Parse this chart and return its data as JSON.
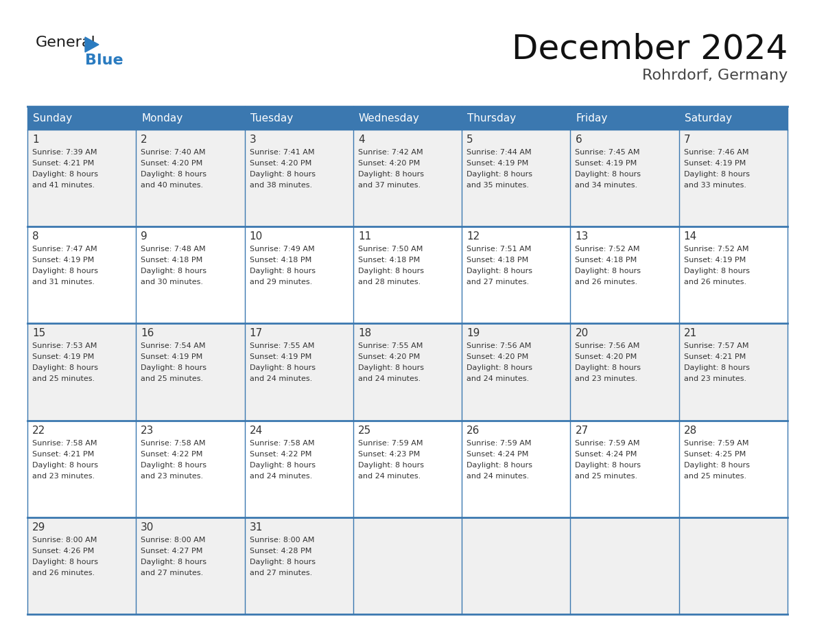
{
  "title": "December 2024",
  "subtitle": "Rohrdorf, Germany",
  "days_of_week": [
    "Sunday",
    "Monday",
    "Tuesday",
    "Wednesday",
    "Thursday",
    "Friday",
    "Saturday"
  ],
  "header_bg": "#3b78b0",
  "header_text": "#ffffff",
  "cell_bg_odd": "#f0f0f0",
  "cell_bg_even": "#ffffff",
  "grid_line_color": "#3b78b0",
  "text_color": "#333333",
  "num_rows": 5,
  "num_cols": 7,
  "calendar_data": [
    [
      {
        "day": 1,
        "sunrise": "7:39 AM",
        "sunset": "4:21 PM",
        "daylight": "8 hours and 41 minutes."
      },
      {
        "day": 2,
        "sunrise": "7:40 AM",
        "sunset": "4:20 PM",
        "daylight": "8 hours and 40 minutes."
      },
      {
        "day": 3,
        "sunrise": "7:41 AM",
        "sunset": "4:20 PM",
        "daylight": "8 hours and 38 minutes."
      },
      {
        "day": 4,
        "sunrise": "7:42 AM",
        "sunset": "4:20 PM",
        "daylight": "8 hours and 37 minutes."
      },
      {
        "day": 5,
        "sunrise": "7:44 AM",
        "sunset": "4:19 PM",
        "daylight": "8 hours and 35 minutes."
      },
      {
        "day": 6,
        "sunrise": "7:45 AM",
        "sunset": "4:19 PM",
        "daylight": "8 hours and 34 minutes."
      },
      {
        "day": 7,
        "sunrise": "7:46 AM",
        "sunset": "4:19 PM",
        "daylight": "8 hours and 33 minutes."
      }
    ],
    [
      {
        "day": 8,
        "sunrise": "7:47 AM",
        "sunset": "4:19 PM",
        "daylight": "8 hours and 31 minutes."
      },
      {
        "day": 9,
        "sunrise": "7:48 AM",
        "sunset": "4:18 PM",
        "daylight": "8 hours and 30 minutes."
      },
      {
        "day": 10,
        "sunrise": "7:49 AM",
        "sunset": "4:18 PM",
        "daylight": "8 hours and 29 minutes."
      },
      {
        "day": 11,
        "sunrise": "7:50 AM",
        "sunset": "4:18 PM",
        "daylight": "8 hours and 28 minutes."
      },
      {
        "day": 12,
        "sunrise": "7:51 AM",
        "sunset": "4:18 PM",
        "daylight": "8 hours and 27 minutes."
      },
      {
        "day": 13,
        "sunrise": "7:52 AM",
        "sunset": "4:18 PM",
        "daylight": "8 hours and 26 minutes."
      },
      {
        "day": 14,
        "sunrise": "7:52 AM",
        "sunset": "4:19 PM",
        "daylight": "8 hours and 26 minutes."
      }
    ],
    [
      {
        "day": 15,
        "sunrise": "7:53 AM",
        "sunset": "4:19 PM",
        "daylight": "8 hours and 25 minutes."
      },
      {
        "day": 16,
        "sunrise": "7:54 AM",
        "sunset": "4:19 PM",
        "daylight": "8 hours and 25 minutes."
      },
      {
        "day": 17,
        "sunrise": "7:55 AM",
        "sunset": "4:19 PM",
        "daylight": "8 hours and 24 minutes."
      },
      {
        "day": 18,
        "sunrise": "7:55 AM",
        "sunset": "4:20 PM",
        "daylight": "8 hours and 24 minutes."
      },
      {
        "day": 19,
        "sunrise": "7:56 AM",
        "sunset": "4:20 PM",
        "daylight": "8 hours and 24 minutes."
      },
      {
        "day": 20,
        "sunrise": "7:56 AM",
        "sunset": "4:20 PM",
        "daylight": "8 hours and 23 minutes."
      },
      {
        "day": 21,
        "sunrise": "7:57 AM",
        "sunset": "4:21 PM",
        "daylight": "8 hours and 23 minutes."
      }
    ],
    [
      {
        "day": 22,
        "sunrise": "7:58 AM",
        "sunset": "4:21 PM",
        "daylight": "8 hours and 23 minutes."
      },
      {
        "day": 23,
        "sunrise": "7:58 AM",
        "sunset": "4:22 PM",
        "daylight": "8 hours and 23 minutes."
      },
      {
        "day": 24,
        "sunrise": "7:58 AM",
        "sunset": "4:22 PM",
        "daylight": "8 hours and 24 minutes."
      },
      {
        "day": 25,
        "sunrise": "7:59 AM",
        "sunset": "4:23 PM",
        "daylight": "8 hours and 24 minutes."
      },
      {
        "day": 26,
        "sunrise": "7:59 AM",
        "sunset": "4:24 PM",
        "daylight": "8 hours and 24 minutes."
      },
      {
        "day": 27,
        "sunrise": "7:59 AM",
        "sunset": "4:24 PM",
        "daylight": "8 hours and 25 minutes."
      },
      {
        "day": 28,
        "sunrise": "7:59 AM",
        "sunset": "4:25 PM",
        "daylight": "8 hours and 25 minutes."
      }
    ],
    [
      {
        "day": 29,
        "sunrise": "8:00 AM",
        "sunset": "4:26 PM",
        "daylight": "8 hours and 26 minutes."
      },
      {
        "day": 30,
        "sunrise": "8:00 AM",
        "sunset": "4:27 PM",
        "daylight": "8 hours and 27 minutes."
      },
      {
        "day": 31,
        "sunrise": "8:00 AM",
        "sunset": "4:28 PM",
        "daylight": "8 hours and 27 minutes."
      },
      null,
      null,
      null,
      null
    ]
  ],
  "logo_color_general": "#1a1a1a",
  "logo_color_blue": "#2a7bc0",
  "logo_triangle_color": "#2a7bc0",
  "title_fontsize": 36,
  "subtitle_fontsize": 16,
  "header_fontsize": 11,
  "day_num_fontsize": 11,
  "cell_fontsize": 8
}
